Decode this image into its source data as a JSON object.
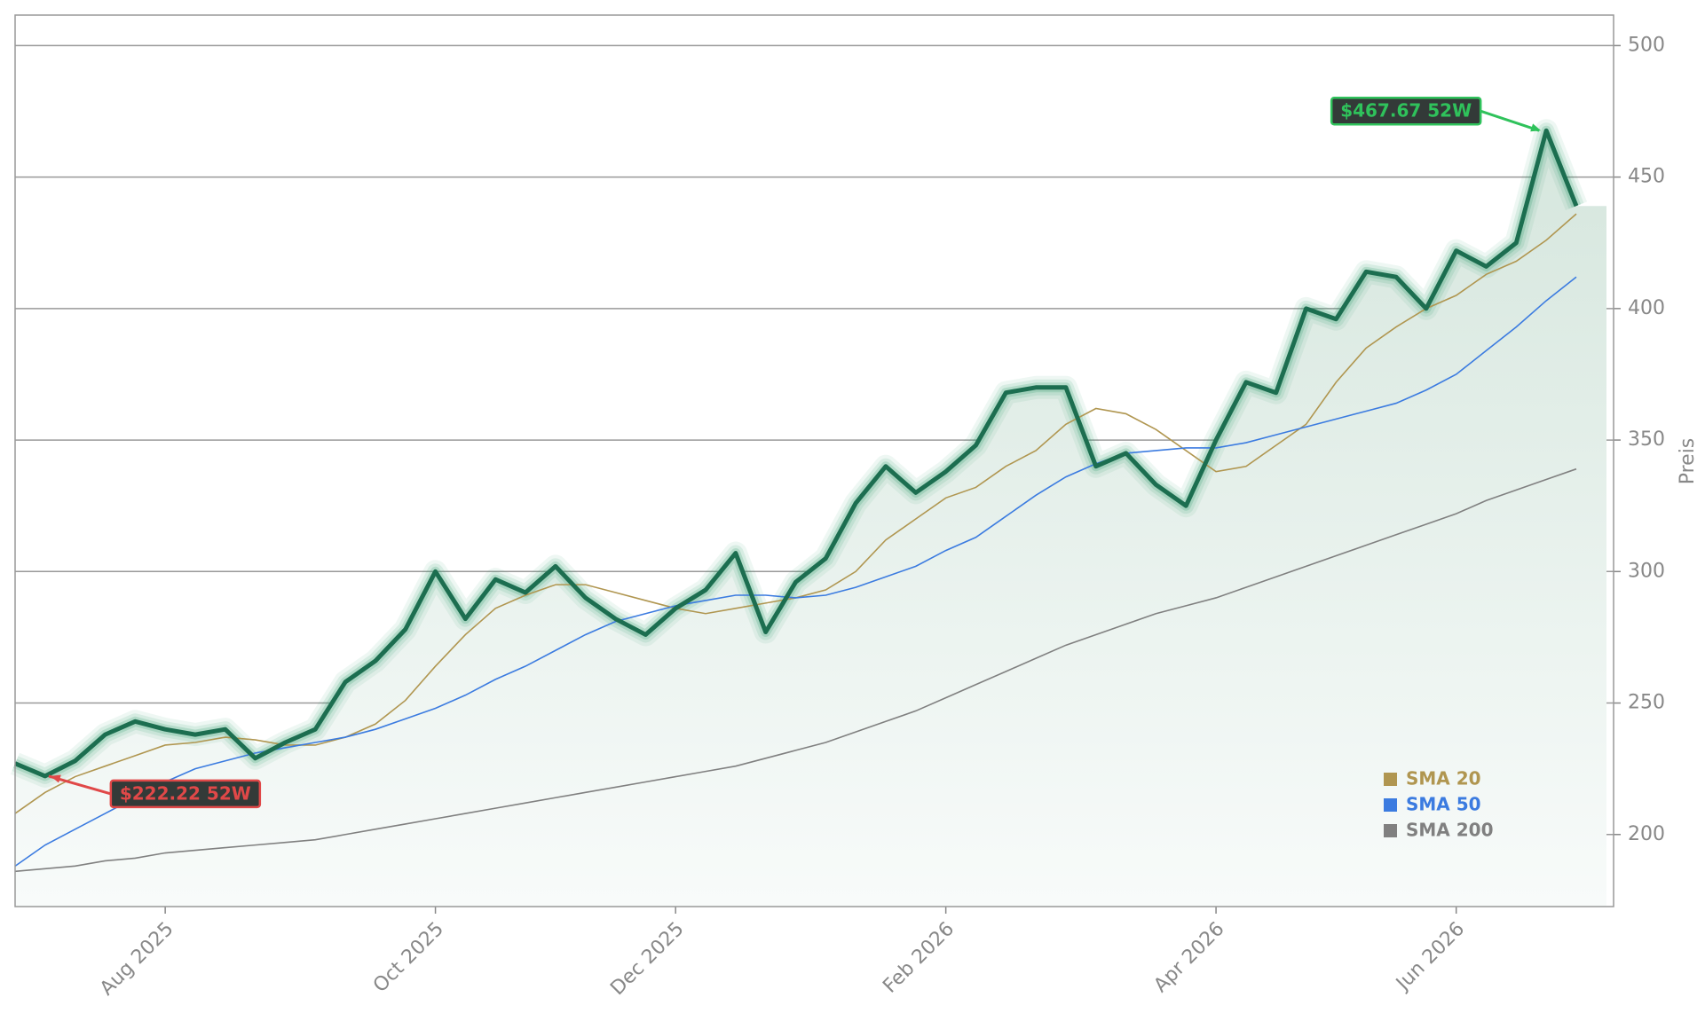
{
  "chart_data": {
    "type": "line",
    "categories": [
      null,
      null,
      null,
      null,
      null,
      "Aug 2025",
      null,
      null,
      null,
      null,
      null,
      null,
      null,
      null,
      "Oct 2025",
      null,
      null,
      null,
      null,
      null,
      null,
      null,
      "Dec 2025",
      null,
      null,
      null,
      null,
      null,
      null,
      null,
      null,
      "Feb 2026",
      null,
      null,
      null,
      null,
      null,
      null,
      null,
      null,
      "Apr 2026",
      null,
      null,
      null,
      null,
      null,
      null,
      null,
      "Jun 2026",
      null,
      null,
      null,
      null
    ],
    "series": [
      {
        "color": "#1c6e50",
        "values": [
          227,
          222.22,
          228,
          238,
          243,
          240,
          238,
          240,
          229,
          235,
          240,
          258,
          266,
          278,
          300,
          282,
          297,
          292,
          302,
          290,
          282,
          276,
          286,
          293,
          307,
          277,
          296,
          305,
          326,
          340,
          330,
          338,
          348,
          368,
          370,
          370,
          340,
          345,
          333,
          325,
          350,
          372,
          368,
          400,
          396,
          414,
          412,
          400,
          422,
          416,
          425,
          467.67,
          439
        ]
      },
      {
        "name": "SMA 20",
        "color": "#b09650",
        "values": [
          208,
          216,
          222,
          226,
          230,
          234,
          235,
          237,
          236,
          234,
          234,
          237,
          242,
          251,
          264,
          276,
          286,
          291,
          295,
          295,
          292,
          289,
          286,
          284,
          286,
          288,
          290,
          293,
          300,
          312,
          320,
          328,
          332,
          340,
          346,
          356,
          362,
          360,
          354,
          346,
          338,
          340,
          348,
          356,
          372,
          385,
          393,
          400,
          405,
          413,
          418,
          426,
          436
        ]
      },
      {
        "name": "SMA 50",
        "color": "#3b7be0",
        "values": [
          188,
          196,
          202,
          208,
          214,
          220,
          225,
          228,
          231,
          233,
          235,
          237,
          240,
          244,
          248,
          253,
          259,
          264,
          270,
          276,
          281,
          284,
          287,
          289,
          291,
          291,
          290,
          291,
          294,
          298,
          302,
          308,
          313,
          321,
          329,
          336,
          341,
          345,
          346,
          347,
          347,
          349,
          352,
          355,
          358,
          361,
          364,
          369,
          375,
          384,
          393,
          403,
          412
        ]
      },
      {
        "name": "SMA 200",
        "color": "#808080",
        "values": [
          186,
          187,
          188,
          190,
          191,
          193,
          194,
          195,
          196,
          197,
          198,
          200,
          202,
          204,
          206,
          208,
          210,
          212,
          214,
          216,
          218,
          220,
          222,
          224,
          226,
          229,
          232,
          235,
          239,
          243,
          247,
          252,
          257,
          262,
          267,
          272,
          276,
          280,
          284,
          287,
          290,
          294,
          298,
          302,
          306,
          310,
          314,
          318,
          322,
          327,
          331,
          335,
          339
        ]
      }
    ],
    "annotations": [
      {
        "text": "$467.67 52W",
        "color": "#2fc25b",
        "at": "max"
      },
      {
        "text": "$222.22 52W",
        "color": "#e04848",
        "at": "min"
      }
    ],
    "ylabel": "Preis",
    "ylim": [
      172.6,
      511.6
    ],
    "yticks": [
      200,
      250,
      300,
      350,
      400,
      450,
      500
    ],
    "grid": true
  }
}
